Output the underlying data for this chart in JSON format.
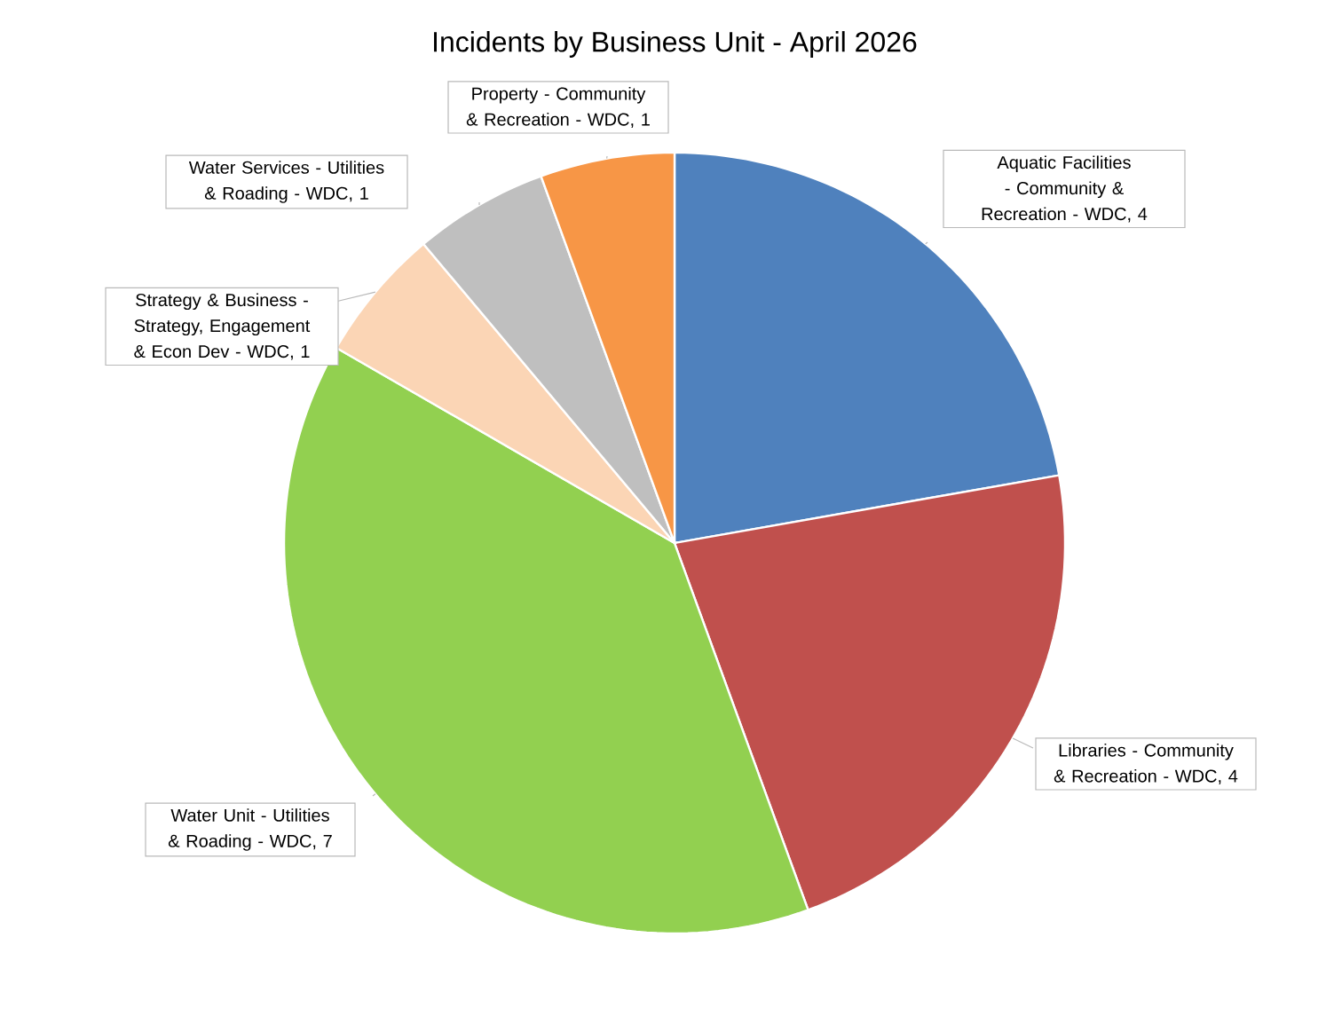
{
  "chart_data": {
    "type": "pie",
    "title": "Incidents by Business Unit - April 2026",
    "categories": [
      null,
      null,
      null,
      null,
      null,
      null
    ],
    "values": [
      4,
      4,
      7,
      1,
      1,
      1
    ],
    "value_labels": [
      "Aquatic Facilities - Community & Recreation - WDC, 4",
      "Libraries - Community & Recreation - WDC, 4",
      "Water Unit - Utilities & Roading - WDC, 7",
      "Strategy & Business - Strategy, Engagement & Econ Dev - WDC, 1",
      "Water Services - Utilities & Roading - WDC, 1",
      "Property - Community & Recreation - WDC, 1"
    ],
    "colors": [
      "#4f81bd",
      "#c0504d",
      "#92d050",
      "#fbd5b5",
      "#bfbfbf",
      "#f79646"
    ]
  }
}
